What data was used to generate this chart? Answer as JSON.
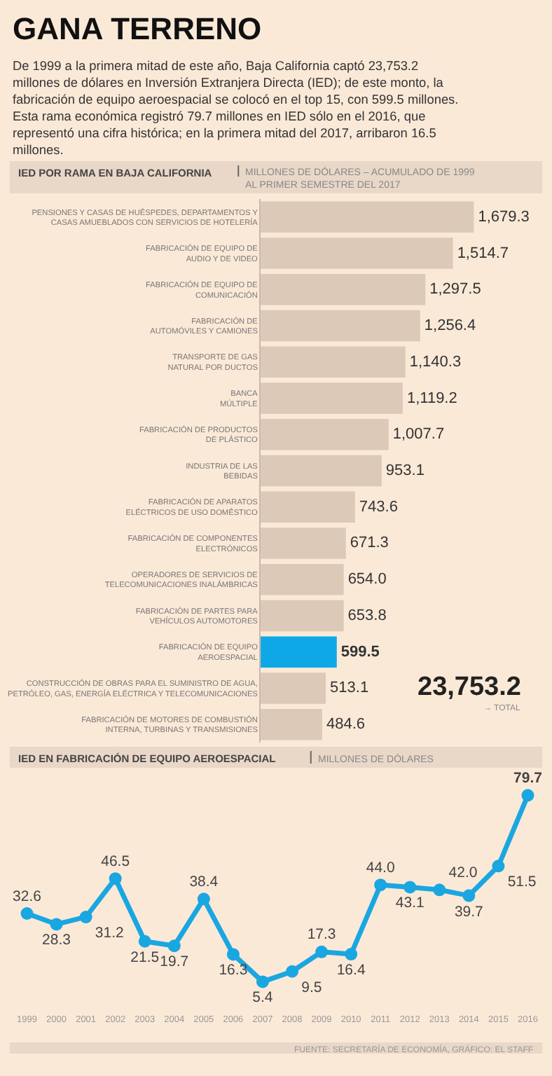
{
  "chart_data": [
    {
      "type": "bar",
      "orientation": "horizontal",
      "title": "IED POR RAMA EN BAJA CALIFORNIA",
      "subtitle": "MILLONES DE DÓLARES – ACUMULADO DE 1999 AL PRIMER SEMESTRE DEL 2017",
      "categories": [
        "PENSIONES Y CASAS DE HUÉSPEDES, DEPARTAMENTOS Y CASAS AMUEBLADOS CON SERVICIOS DE HOTELERÍA",
        "FABRICACIÓN DE EQUIPO DE AUDIO Y DE VIDEO",
        "FABRICACIÓN DE EQUIPO DE COMUNICACIÓN",
        "FABRICACIÓN DE AUTOMÓVILES Y CAMIONES",
        "TRANSPORTE DE GAS NATURAL POR DUCTOS",
        "BANCA MÚLTIPLE",
        "FABRICACIÓN DE PRODUCTOS DE PLÁSTICO",
        "INDUSTRIA DE LAS BEBIDAS",
        "FABRICACIÓN DE APARATOS ELÉCTRICOS DE USO DOMÉSTICO",
        "FABRICACIÓN DE COMPONENTES ELECTRÓNICOS",
        "OPERADORES DE SERVICIOS DE TELECOMUNICACIONES INALÁMBRICAS",
        "FABRICACIÓN DE PARTES PARA VEHÍCULOS AUTOMOTORES",
        "FABRICACIÓN DE EQUIPO AEROESPACIAL",
        "CONSTRUCCIÓN DE OBRAS PARA EL SUMINISTRO DE AGUA, PETRÓLEO, GAS, ENERGÍA ELÉCTRICA Y TELECOMUNICACIONES",
        "FABRICACIÓN DE MOTORES DE COMBUSTIÓN INTERNA, TURBINAS Y TRANSMISIONES"
      ],
      "values": [
        1679.3,
        1514.7,
        1297.5,
        1256.4,
        1140.3,
        1119.2,
        1007.7,
        953.1,
        743.6,
        671.3,
        654.0,
        653.8,
        599.5,
        513.1,
        484.6
      ],
      "colors": [
        "#dcc9b8",
        "#dcc9b8",
        "#dcc9b8",
        "#dcc9b8",
        "#dcc9b8",
        "#dcc9b8",
        "#dcc9b8",
        "#dcc9b8",
        "#dcc9b8",
        "#dcc9b8",
        "#dcc9b8",
        "#dcc9b8",
        "#0fa8e6",
        "#dcc9b8",
        "#dcc9b8"
      ],
      "value_labels": [
        "1,679.3",
        "1,514.7",
        "1,297.5",
        "1,256.4",
        "1,140.3",
        "1,119.2",
        "1,007.7",
        "953.1",
        "743.6",
        "671.3",
        "654.0",
        "653.8",
        "599.5",
        "513.1",
        "484.6"
      ],
      "annotations": [
        "GANA TERRENO",
        "De 1999 a la primera mitad de este año, Baja California captó 23,753.2 millones de dólares en Inversión Extranjera Directa (IED); de este monto, la fabricación de equipo aeroespacial se colocó en el top 15, con 599.5 millones. Esta rama económica registró 79.7 millones en IED sólo en el 2016, que representó una cifra histórica; en la primera mitad del 2017, arribaron 16.5 millones.",
        "23,753.2",
        "→ TOTAL"
      ],
      "tick_labels": "y",
      "grid": false
    },
    {
      "type": "line",
      "title": "IED EN FABRICACIÓN DE EQUIPO AEROESPACIAL",
      "subtitle": "MILLONES DE DÓLARES",
      "categories": [
        "1999",
        "2000",
        "2001",
        "2002",
        "2003",
        "2004",
        "2005",
        "2006",
        "2007",
        "2008",
        "2009",
        "2010",
        "2011",
        "2012",
        "2013",
        "2014",
        "2015",
        "2016"
      ],
      "series": [
        {
          "color": "#1aa7e1",
          "values": [
            32.6,
            28.3,
            31.2,
            46.5,
            21.5,
            19.7,
            38.4,
            16.3,
            5.4,
            9.5,
            17.3,
            16.4,
            44.0,
            43.1,
            42.0,
            39.7,
            51.5,
            79.7
          ],
          "value_labels": [
            "32.6",
            "28.3",
            "31.2",
            "46.5",
            "21.5",
            "19.7",
            "38.4",
            "16.3",
            "5.4",
            "9.5",
            "17.3",
            "16.4",
            "44.0",
            "43.1",
            "42.0",
            "39.7",
            "51.5",
            "79.7"
          ]
        }
      ],
      "marker": "circle",
      "line_style": "solid",
      "tick_labels": "x",
      "grid": false,
      "annotations": [
        "FUENTE: SECRETARÍA DE ECONOMÍA, GRÁFICO: EL STAFF"
      ]
    }
  ]
}
